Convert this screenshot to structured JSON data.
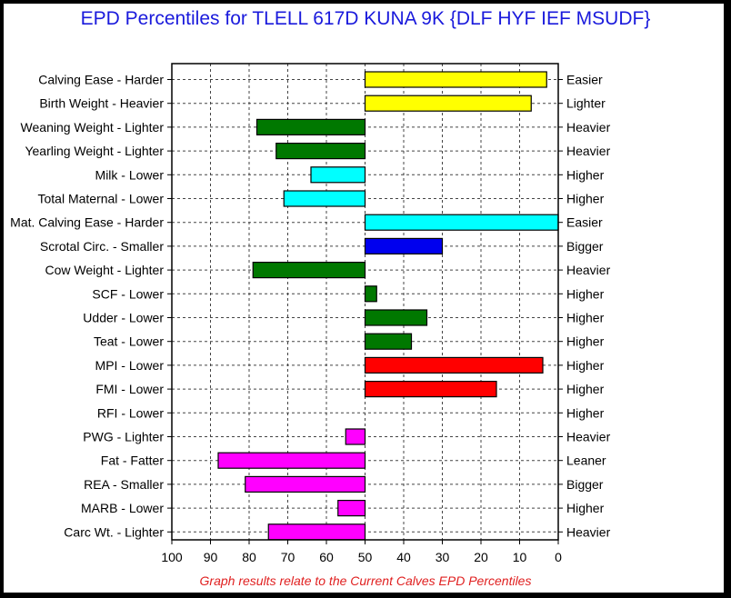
{
  "title": "EPD Percentiles for TLELL 617D KUNA 9K {DLF HYF IEF MSUDF}",
  "footnote": "Graph results relate to the Current Calves EPD Percentiles",
  "colors": {
    "yellow": "#ffff00",
    "dark_green": "#007800",
    "cyan": "#00ffff",
    "blue": "#0000ee",
    "red": "#ff0000",
    "magenta": "#ff00ff"
  },
  "chart_data": {
    "type": "bar",
    "orientation": "horizontal",
    "baseline": 50,
    "xlim": [
      100,
      0
    ],
    "x_ticks": [
      "100",
      "90",
      "80",
      "70",
      "60",
      "50",
      "40",
      "30",
      "20",
      "10",
      "0"
    ],
    "grid": true,
    "rows": [
      {
        "left": "Calving Ease - Harder",
        "right": "Easier",
        "value": 3,
        "color": "yellow"
      },
      {
        "left": "Birth Weight - Heavier",
        "right": "Lighter",
        "value": 7,
        "color": "yellow"
      },
      {
        "left": "Weaning Weight - Lighter",
        "right": "Heavier",
        "value": 78,
        "color": "dark_green"
      },
      {
        "left": "Yearling Weight - Lighter",
        "right": "Heavier",
        "value": 73,
        "color": "dark_green"
      },
      {
        "left": "Milk - Lower",
        "right": "Higher",
        "value": 64,
        "color": "cyan"
      },
      {
        "left": "Total Maternal - Lower",
        "right": "Higher",
        "value": 71,
        "color": "cyan"
      },
      {
        "left": "Mat. Calving Ease - Harder",
        "right": "Easier",
        "value": 0,
        "color": "cyan"
      },
      {
        "left": "Scrotal Circ. - Smaller",
        "right": "Bigger",
        "value": 30,
        "color": "blue"
      },
      {
        "left": "Cow Weight - Lighter",
        "right": "Heavier",
        "value": 79,
        "color": "dark_green"
      },
      {
        "left": "SCF - Lower",
        "right": "Higher",
        "value": 47,
        "color": "dark_green"
      },
      {
        "left": "Udder - Lower",
        "right": "Higher",
        "value": 34,
        "color": "dark_green"
      },
      {
        "left": "Teat - Lower",
        "right": "Higher",
        "value": 38,
        "color": "dark_green"
      },
      {
        "left": "MPI - Lower",
        "right": "Higher",
        "value": 4,
        "color": "red"
      },
      {
        "left": "FMI - Lower",
        "right": "Higher",
        "value": 16,
        "color": "red"
      },
      {
        "left": "RFI - Lower",
        "right": "Higher",
        "value": 50,
        "color": "red"
      },
      {
        "left": "PWG - Lighter",
        "right": "Heavier",
        "value": 55,
        "color": "magenta"
      },
      {
        "left": "Fat - Fatter",
        "right": "Leaner",
        "value": 88,
        "color": "magenta"
      },
      {
        "left": "REA - Smaller",
        "right": "Bigger",
        "value": 81,
        "color": "magenta"
      },
      {
        "left": "MARB - Lower",
        "right": "Higher",
        "value": 57,
        "color": "magenta"
      },
      {
        "left": "Carc Wt. - Lighter",
        "right": "Heavier",
        "value": 75,
        "color": "magenta"
      }
    ]
  }
}
